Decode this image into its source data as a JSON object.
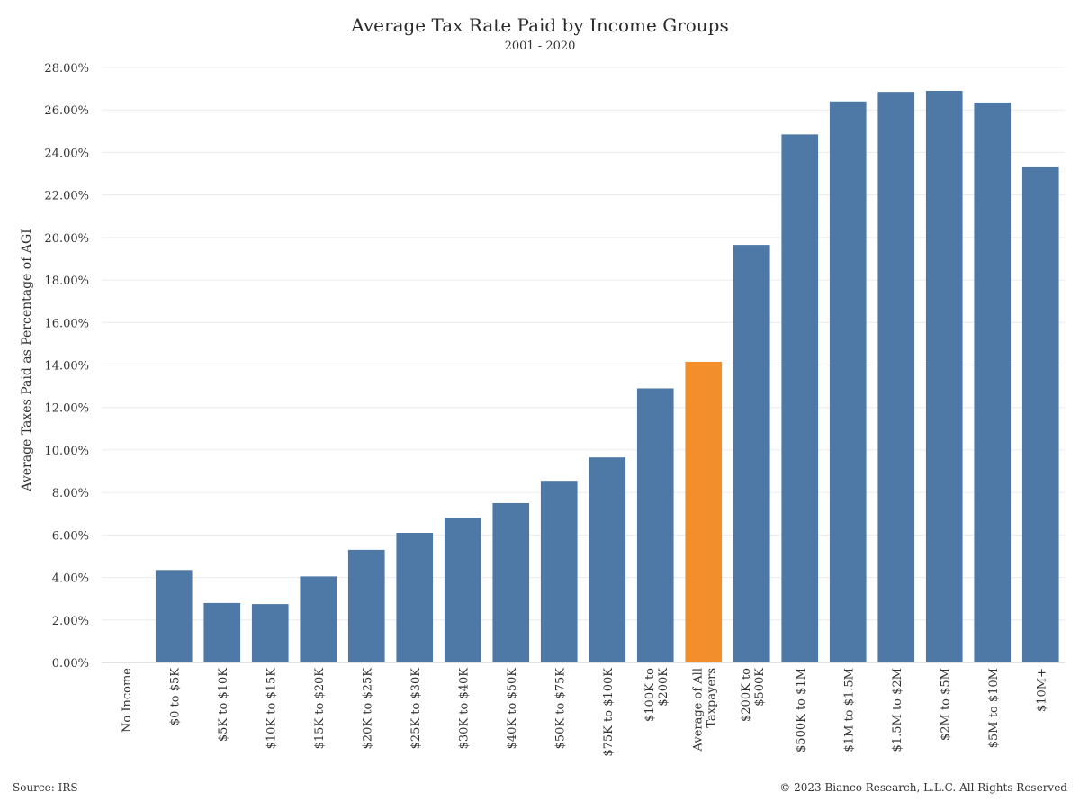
{
  "footer": {
    "source": "Source: IRS",
    "copyright": "© 2023 Bianco Research, L.L.C. All Rights Reserved"
  },
  "colors": {
    "bar": "#4e79a7",
    "highlight": "#f28e2b",
    "grid": "#ececec"
  },
  "chart_data": {
    "type": "bar",
    "title": "Average Tax Rate Paid by Income Groups",
    "subtitle": "2001 - 2020",
    "xlabel": "",
    "ylabel": "Average Taxes Paid as Percentage of AGI",
    "ylim": [
      0,
      28
    ],
    "y_ticks": [
      "0.00%",
      "2.00%",
      "4.00%",
      "6.00%",
      "8.00%",
      "10.00%",
      "12.00%",
      "14.00%",
      "16.00%",
      "18.00%",
      "20.00%",
      "22.00%",
      "24.00%",
      "26.00%",
      "28.00%"
    ],
    "y_tick_values": [
      0,
      2,
      4,
      6,
      8,
      10,
      12,
      14,
      16,
      18,
      20,
      22,
      24,
      26,
      28
    ],
    "grid": true,
    "legend": "none",
    "categories": [
      [
        "No Income"
      ],
      [
        "$0 to $5K"
      ],
      [
        "$5K to $10K"
      ],
      [
        "$10K to $15K"
      ],
      [
        "$15K to $20K"
      ],
      [
        "$20K to $25K"
      ],
      [
        "$25K to $30K"
      ],
      [
        "$30K to $40K"
      ],
      [
        "$40K to $50K"
      ],
      [
        "$50K to $75K"
      ],
      [
        "$75K to $100K"
      ],
      [
        "$100K to",
        "$200K"
      ],
      [
        "Average of All",
        "Taxpayers"
      ],
      [
        "$200K to",
        "$500K"
      ],
      [
        "$500K to $1M"
      ],
      [
        "$1M to $1.5M"
      ],
      [
        "$1.5M to $2M"
      ],
      [
        "$2M to $5M"
      ],
      [
        "$5M to $10M"
      ],
      [
        "$10M+"
      ]
    ],
    "values": [
      0.0,
      4.35,
      2.8,
      2.75,
      4.05,
      5.3,
      6.1,
      6.8,
      7.5,
      8.55,
      9.65,
      12.9,
      14.15,
      19.65,
      24.85,
      26.4,
      26.85,
      26.9,
      26.35,
      23.3
    ],
    "highlight_index": 12
  }
}
